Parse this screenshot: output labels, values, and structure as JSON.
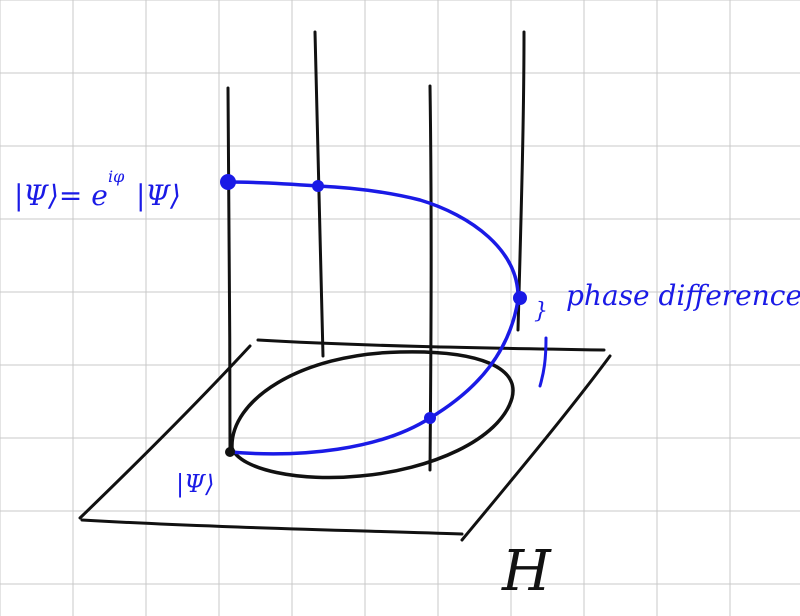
{
  "labels": {
    "state_phase": "|Ψ⟩= e^{iφ} |Ψ⟩",
    "state_phase_main": "|Ψ⟩= e",
    "state_phase_exp": "iφ",
    "state_phase_tail": "|Ψ⟩",
    "state_base": "|Ψ⟩",
    "phase_difference": "phase difference",
    "space": "H"
  },
  "colors": {
    "grid": "#c8c8c8",
    "ink": "#111111",
    "path": "#1a1ae6",
    "background": "#ffffff"
  }
}
